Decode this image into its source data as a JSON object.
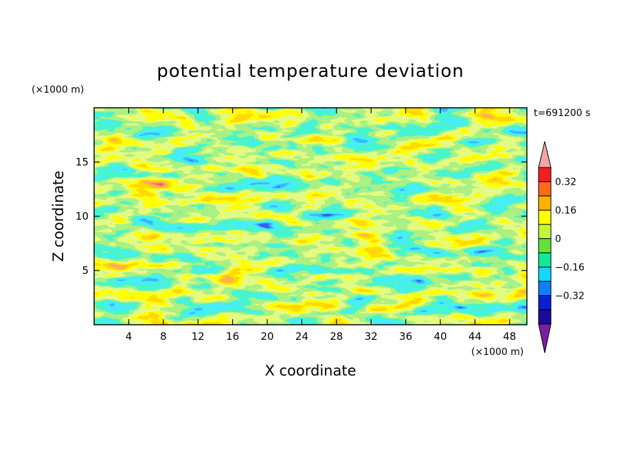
{
  "chart_data": {
    "type": "heatmap",
    "title": "potential temperature deviation",
    "xlabel": "X coordinate",
    "ylabel": "Z coordinate",
    "x_unit": "(×1000 m)",
    "y_unit": "(×1000 m)",
    "time_label": "t=691200 s",
    "xlim": [
      0,
      50
    ],
    "ylim": [
      0,
      20
    ],
    "x_ticks": [
      4,
      8,
      12,
      16,
      20,
      24,
      28,
      32,
      36,
      40,
      44,
      48
    ],
    "y_ticks": [
      5,
      10,
      15
    ],
    "colorbar": {
      "levels": [
        -0.48,
        -0.4,
        -0.32,
        -0.24,
        -0.16,
        -0.08,
        0,
        0.08,
        0.16,
        0.24,
        0.32,
        0.4
      ],
      "colors": [
        "#7b1fa2",
        "#1a0a9e",
        "#0a1fd1",
        "#0a7fff",
        "#10d8ff",
        "#10e89a",
        "#66e03a",
        "#c4f53a",
        "#ffff00",
        "#ffb300",
        "#ff6a1a",
        "#f02020",
        "#f4a6a6"
      ],
      "tick_labels": [
        {
          "value": -0.32,
          "label": "−0.32"
        },
        {
          "value": -0.16,
          "label": "−0.16"
        },
        {
          "value": 0,
          "label": "0"
        },
        {
          "value": 0.16,
          "label": "0.16"
        },
        {
          "value": 0.32,
          "label": "0.32"
        }
      ]
    }
  }
}
